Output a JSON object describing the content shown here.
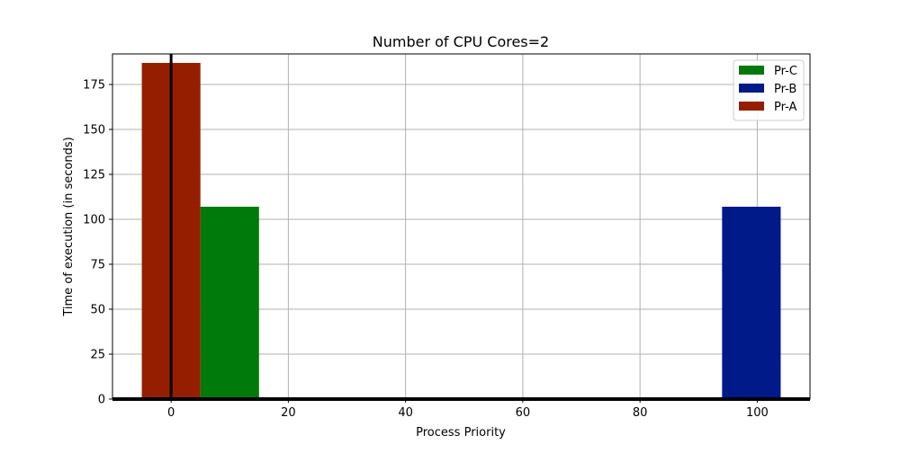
{
  "chart_data": {
    "type": "bar",
    "title": "Number of CPU Cores=2",
    "xlabel": "Process Priority",
    "ylabel": "Time of execution (in seconds)",
    "xlim": [
      -10,
      109
    ],
    "ylim": [
      0,
      192
    ],
    "x_ticks": [
      0,
      20,
      40,
      60,
      80,
      100
    ],
    "y_ticks": [
      0,
      25,
      50,
      75,
      100,
      125,
      150,
      175
    ],
    "grid": true,
    "legend_position": "top-right",
    "bar_width": 10,
    "series": [
      {
        "name": "Pr-C",
        "color": "#007a0a",
        "x": 10,
        "value": 107
      },
      {
        "name": "Pr-B",
        "color": "#001a8a",
        "x": 99,
        "value": 107
      },
      {
        "name": "Pr-A",
        "color": "#961e00",
        "x": 0,
        "value": 187
      }
    ],
    "reference_lines": {
      "vertical_x": 0,
      "horizontal_y": 0
    }
  }
}
